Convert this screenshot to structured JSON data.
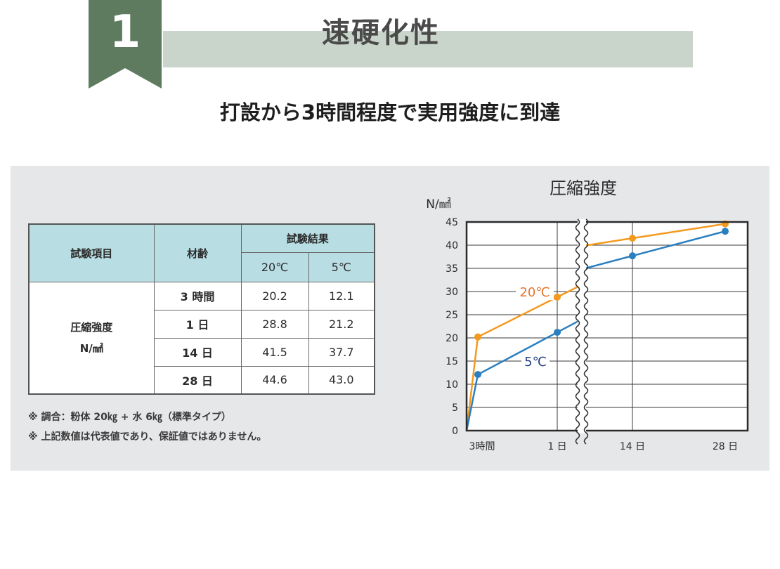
{
  "header": {
    "number": "1",
    "title": "速硬化性",
    "subtitle": "打設から3時間程度で実用強度に到達"
  },
  "table": {
    "col_item": "試験項目",
    "col_age": "材齢",
    "col_results": "試験結果",
    "col_20c": "20℃",
    "col_5c": "5℃",
    "row_label_line1": "圧縮強度",
    "row_label_line2": "N/㎟",
    "rows": [
      {
        "age": "3 時間",
        "v20": "20.2",
        "v5": "12.1"
      },
      {
        "age": "1 日",
        "v20": "28.8",
        "v5": "21.2"
      },
      {
        "age": "14 日",
        "v20": "41.5",
        "v5": "37.7"
      },
      {
        "age": "28 日",
        "v20": "44.6",
        "v5": "43.0"
      }
    ]
  },
  "notes": [
    "※ 調合：粉体 20㎏ + 水 6㎏（標準タイプ）",
    "※ 上記数値は代表値であり、保証値ではありません。"
  ],
  "chart_data": {
    "type": "line",
    "title": "圧縮強度",
    "ylabel": "N/㎟",
    "ylim": [
      0,
      45
    ],
    "yticks": [
      0,
      5,
      10,
      15,
      20,
      25,
      30,
      35,
      40,
      45
    ],
    "categories": [
      "0",
      "3時間",
      "1 日",
      "14 日",
      "28 日"
    ],
    "x_tick_labels": [
      "3時間",
      "1 日",
      "14 日",
      "28 日"
    ],
    "axis_break": "between 1 日 and 14 日",
    "grid": true,
    "series": [
      {
        "name": "20℃",
        "color": "#f39a1e",
        "values": [
          0,
          20.2,
          28.8,
          41.5,
          44.6
        ]
      },
      {
        "name": "5℃",
        "color": "#2a7fc0",
        "values": [
          0,
          12.1,
          21.2,
          37.7,
          43.0
        ]
      }
    ],
    "label_colors": {
      "20℃": "#e8742a",
      "5℃": "#22407f"
    }
  }
}
